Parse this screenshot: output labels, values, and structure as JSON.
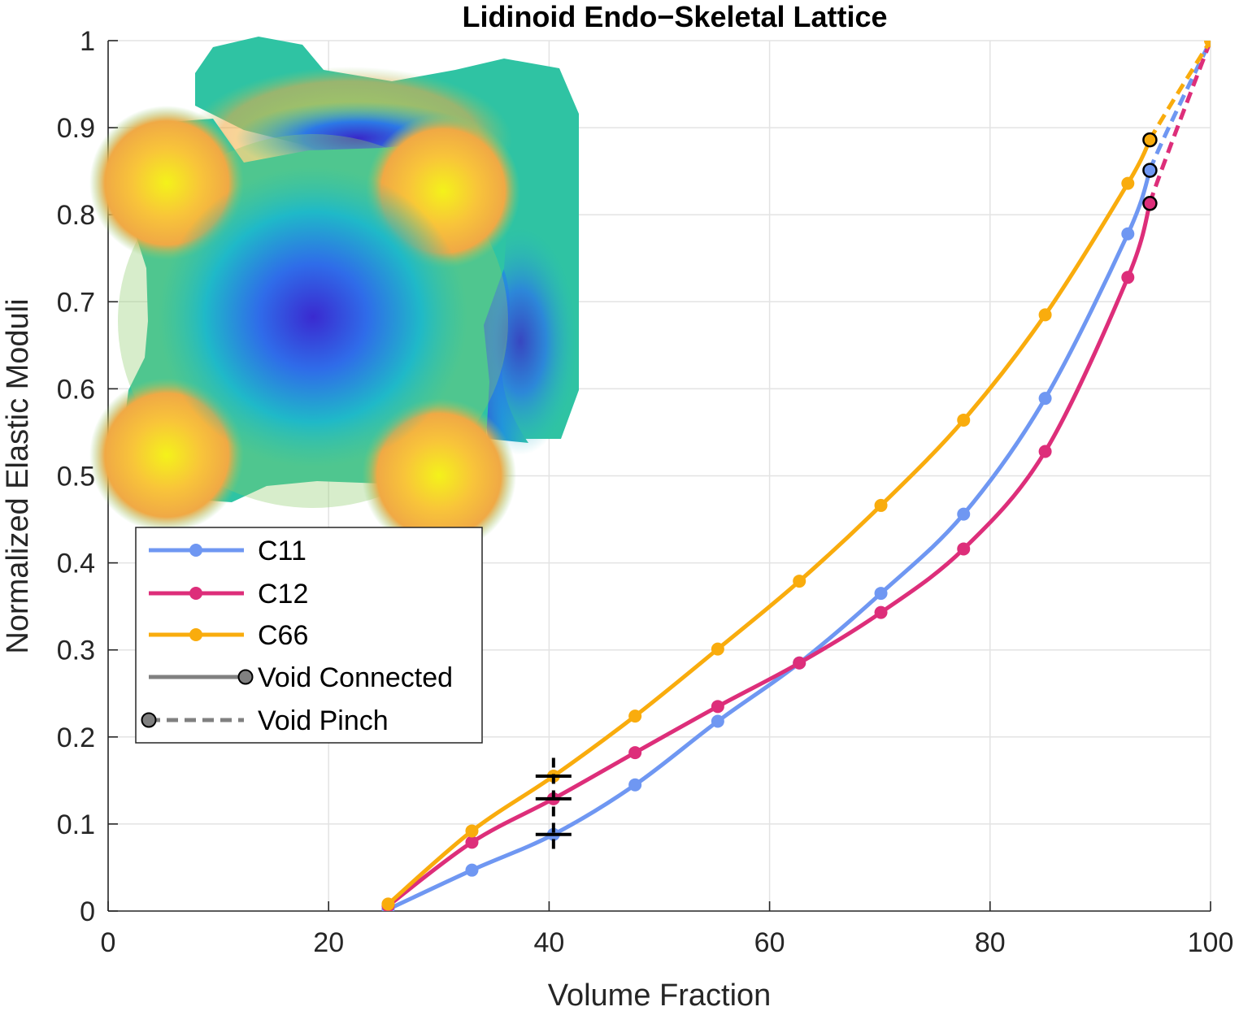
{
  "chart_data": {
    "type": "line",
    "title": "Lidinoid Endo−Skeletal Lattice",
    "xlabel": "Volume Fraction",
    "ylabel": "Normalized Elastic Moduli",
    "xlim": [
      0,
      100
    ],
    "ylim": [
      0,
      1
    ],
    "xticks": [
      "0",
      "20",
      "40",
      "60",
      "80",
      "100"
    ],
    "yticks": [
      "0",
      "0.1",
      "0.2",
      "0.3",
      "0.4",
      "0.5",
      "0.6",
      "0.7",
      "0.8",
      "0.9",
      "1"
    ],
    "grid": true,
    "legend_position": "left, below inset image",
    "series": [
      {
        "name": "C11",
        "color": "#6f97f2",
        "x": [
          25.4,
          33.0,
          40.4,
          47.8,
          55.3,
          62.7,
          70.1,
          77.6,
          85.0,
          92.5
        ],
        "y": [
          0.002,
          0.047,
          0.088,
          0.145,
          0.218,
          0.285,
          0.365,
          0.456,
          0.589,
          0.778
        ],
        "pinch_x": [
          94.5,
          100
        ],
        "pinch_y": [
          0.851,
          1.0
        ]
      },
      {
        "name": "C12",
        "color": "#dd2e7a",
        "x": [
          25.4,
          33.0,
          40.4,
          47.8,
          55.3,
          62.7,
          70.1,
          77.6,
          85.0,
          92.5
        ],
        "y": [
          0.006,
          0.079,
          0.129,
          0.182,
          0.235,
          0.285,
          0.343,
          0.416,
          0.528,
          0.728
        ],
        "pinch_x": [
          94.5,
          100
        ],
        "pinch_y": [
          0.813,
          1.0
        ]
      },
      {
        "name": "C66",
        "color": "#f9ac0d",
        "x": [
          25.4,
          33.0,
          40.4,
          47.8,
          55.3,
          62.7,
          70.1,
          77.6,
          85.0,
          92.5
        ],
        "y": [
          0.008,
          0.092,
          0.155,
          0.224,
          0.301,
          0.379,
          0.466,
          0.564,
          0.685,
          0.836
        ],
        "pinch_x": [
          94.5,
          100
        ],
        "pinch_y": [
          0.886,
          1.0
        ]
      }
    ],
    "markers_at_x40": {
      "x": 40.4,
      "style": "black plus crosshair"
    },
    "legend": [
      {
        "label": "C11",
        "color": "#6f97f2",
        "style": "solid-dot"
      },
      {
        "label": "C12",
        "color": "#dd2e7a",
        "style": "solid-dot"
      },
      {
        "label": "C66",
        "color": "#f9ac0d",
        "style": "solid-dot"
      },
      {
        "label": "Void Connected",
        "color": "#808080",
        "style": "solid-end-dot"
      },
      {
        "label": "Void Pinch",
        "color": "#808080",
        "style": "dashed-start-dot"
      }
    ],
    "inset": {
      "description_icon": "lidinoid-surface-render-icon"
    }
  }
}
